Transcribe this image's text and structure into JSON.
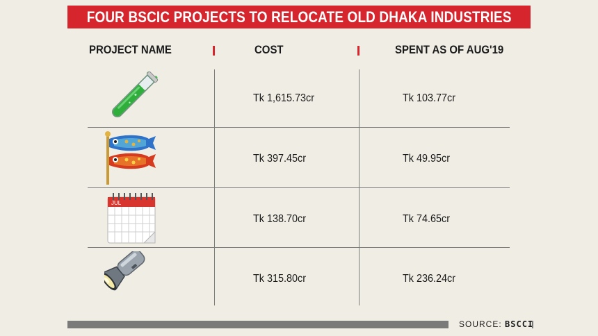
{
  "title": "FOUR BSCIC PROJECTS TO RELOCATE OLD DHAKA INDUSTRIES",
  "colors": {
    "accent": "#d7252d",
    "background": "#f0ede4",
    "rule": "#7a7a7a"
  },
  "table": {
    "headers": [
      "PROJECT NAME",
      "COST",
      "SPENT AS OF AUG'19"
    ],
    "rows": [
      {
        "icon": "test-tube-icon",
        "cost": "Tk 1,615.73cr",
        "spent": "Tk 103.77cr"
      },
      {
        "icon": "carp-streamer-icon",
        "cost": "Tk 397.45cr",
        "spent": "Tk 49.95cr"
      },
      {
        "icon": "spiral-calendar-icon",
        "calendar_month": "JUL",
        "cost": "Tk 138.70cr",
        "spent": "Tk 74.65cr"
      },
      {
        "icon": "flashlight-icon",
        "cost": "Tk 315.80cr",
        "spent": "Tk 236.24cr"
      }
    ]
  },
  "footer": {
    "source_label": "SOURCE:",
    "source_value": "BSCCI"
  }
}
